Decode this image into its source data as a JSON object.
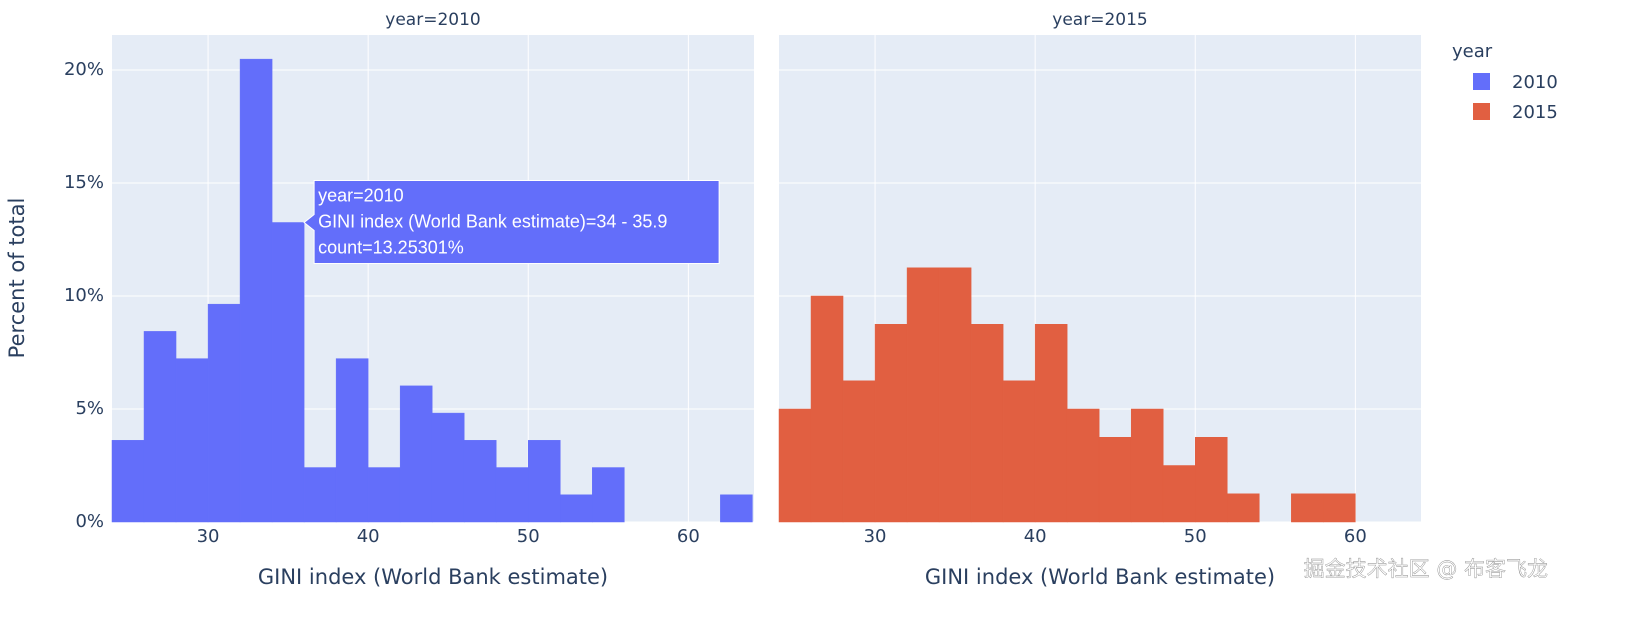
{
  "chart_data": {
    "type": "histogram",
    "y_label": "Percent of total",
    "x_label": "GINI index (World Bank estimate)",
    "legend_title": "year",
    "bins": [
      24,
      26,
      28,
      30,
      32,
      34,
      36,
      38,
      40,
      42,
      44,
      46,
      48,
      50,
      52,
      54,
      56,
      58,
      60,
      62,
      64
    ],
    "series": [
      {
        "name": "2010",
        "facet_title": "year=2010",
        "color": "#636efa",
        "values": [
          3.614,
          8.434,
          7.229,
          9.639,
          20.482,
          13.253,
          2.41,
          7.229,
          2.41,
          6.024,
          4.819,
          3.614,
          2.41,
          3.614,
          1.205,
          2.41,
          0,
          0,
          0,
          1.205
        ]
      },
      {
        "name": "2015",
        "facet_title": "year=2015",
        "color": "#e15f41",
        "values": [
          5,
          10,
          6.25,
          8.75,
          11.25,
          11.25,
          8.75,
          6.25,
          8.75,
          5,
          3.75,
          5,
          2.5,
          3.75,
          1.25,
          0,
          1.25,
          1.25,
          0,
          0
        ]
      }
    ],
    "xlim": [
      24,
      64.1
    ],
    "xticks": [
      30,
      40,
      50,
      60
    ],
    "ylim": [
      0,
      21.55
    ],
    "yticks": [
      {
        "value": 0,
        "label": "0%"
      },
      {
        "value": 5,
        "label": "5%"
      },
      {
        "value": 10,
        "label": "10%"
      },
      {
        "value": 15,
        "label": "15%"
      },
      {
        "value": 20,
        "label": "20%"
      }
    ],
    "grid": true,
    "tooltip": [
      "year=2010",
      "GINI index (World Bank estimate)=34 - 35.9",
      "count=13.25301%"
    ],
    "watermark": "掘金技术社区 @ 布客飞龙"
  }
}
